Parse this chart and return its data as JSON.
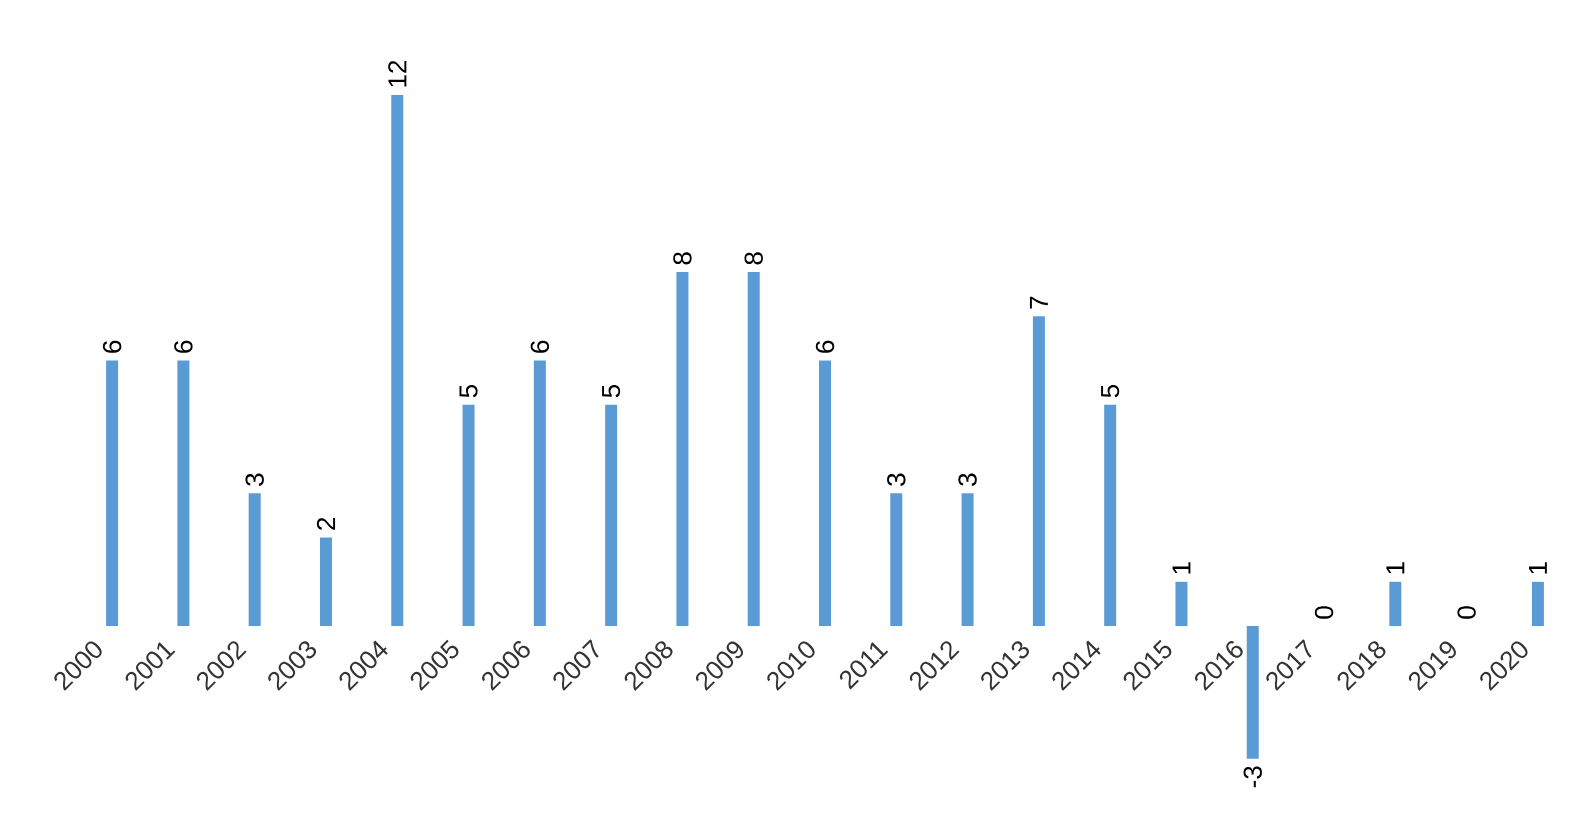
{
  "chart_data": {
    "type": "bar",
    "categories": [
      "2000",
      "2001",
      "2002",
      "2003",
      "2004",
      "2005",
      "2006",
      "2007",
      "2008",
      "2009",
      "2010",
      "2011",
      "2012",
      "2013",
      "2014",
      "2015",
      "2016",
      "2017",
      "2018",
      "2019",
      "2020"
    ],
    "values": [
      6,
      6,
      3,
      2,
      12,
      5,
      6,
      5,
      8,
      8,
      6,
      3,
      3,
      7,
      5,
      1,
      -3,
      0,
      1,
      0,
      1
    ],
    "color": "#5b9bd5",
    "data_labels": true
  }
}
